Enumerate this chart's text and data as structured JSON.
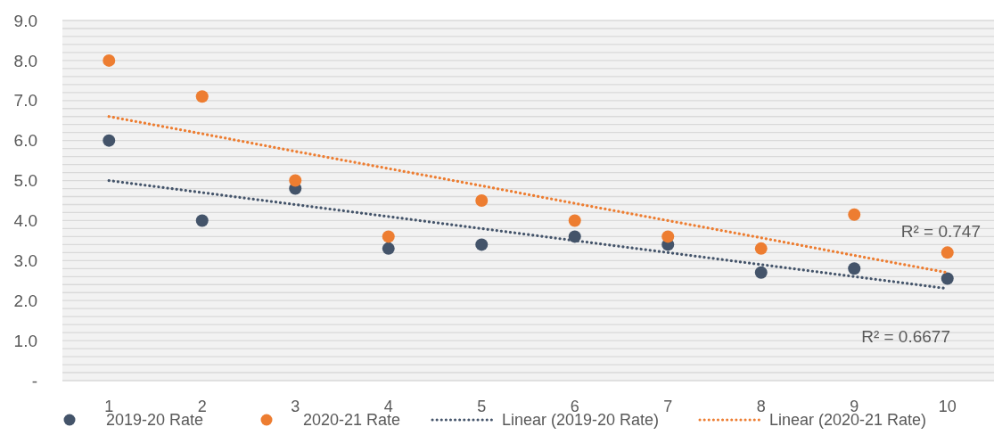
{
  "chart_data": {
    "type": "scatter",
    "categories": [
      "1",
      "2",
      "3",
      "4",
      "5",
      "6",
      "7",
      "8",
      "9",
      "10"
    ],
    "series": [
      {
        "name": "2019-20 Rate",
        "color": "#44546a",
        "marker": "circle",
        "values": [
          6.0,
          4.0,
          4.8,
          3.3,
          3.4,
          3.6,
          3.4,
          2.7,
          2.8,
          2.55
        ]
      },
      {
        "name": "2020-21 Rate",
        "color": "#ed7d31",
        "marker": "circle",
        "values": [
          8.0,
          7.1,
          5.0,
          3.6,
          4.5,
          4.0,
          3.6,
          3.3,
          4.15,
          3.2
        ]
      },
      {
        "name": "Linear (2019-20 Rate)",
        "type": "line",
        "color": "#44546a",
        "line_style": "dotted",
        "marker": "none",
        "values": [
          5.0,
          4.7,
          4.4,
          4.1,
          3.8,
          3.5,
          3.2,
          2.9,
          2.6,
          2.3
        ]
      },
      {
        "name": "Linear (2020-21 Rate)",
        "type": "line",
        "color": "#ed7d31",
        "line_style": "dotted",
        "marker": "none",
        "values": [
          6.6,
          6.17,
          5.73,
          5.3,
          4.87,
          4.43,
          4.0,
          3.57,
          3.13,
          2.7
        ]
      }
    ],
    "ylim": [
      0,
      9
    ],
    "yticks": [
      {
        "value": 0,
        "label": "-"
      },
      {
        "value": 1,
        "label": "1.0"
      },
      {
        "value": 2,
        "label": "2.0"
      },
      {
        "value": 3,
        "label": "3.0"
      },
      {
        "value": 4,
        "label": "4.0"
      },
      {
        "value": 5,
        "label": "5.0"
      },
      {
        "value": 6,
        "label": "6.0"
      },
      {
        "value": 7,
        "label": "7.0"
      },
      {
        "value": 8,
        "label": "8.0"
      },
      {
        "value": 9,
        "label": "9.0"
      }
    ],
    "grid": "y",
    "legend": "bottom",
    "annotations": [
      "R² = 0.747",
      "R² = 0.6677"
    ]
  }
}
